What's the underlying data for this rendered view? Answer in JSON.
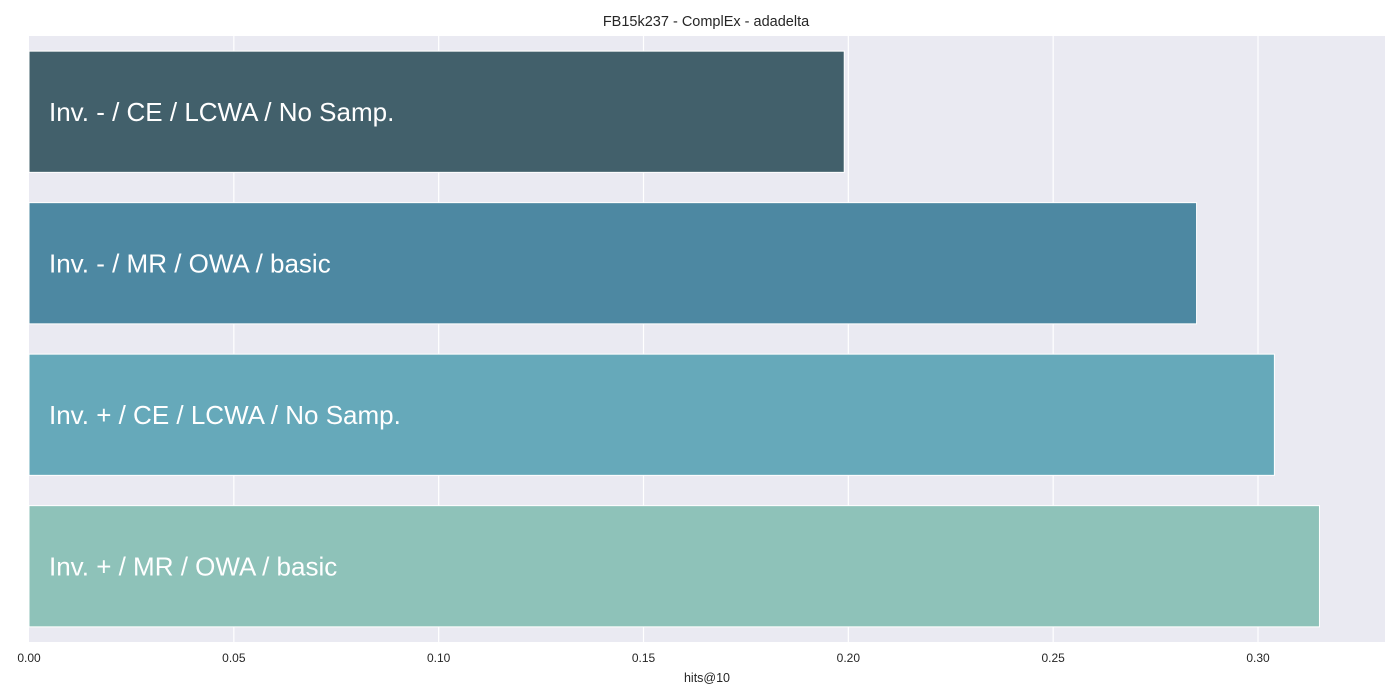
{
  "chart_data": {
    "type": "bar",
    "orientation": "horizontal",
    "title": "FB15k237 - ComplEx - adadelta",
    "xlabel": "hits@10",
    "ylabel": "",
    "xlim": [
      0,
      0.331
    ],
    "xticks": [
      "0.00",
      "0.05",
      "0.10",
      "0.15",
      "0.20",
      "0.25",
      "0.30"
    ],
    "xtick_values": [
      0,
      0.05,
      0.1,
      0.15,
      0.2,
      0.25,
      0.3
    ],
    "grid": true,
    "categories": [
      "Inv. - / CE / LCWA / No Samp.",
      "Inv. - / MR / OWA / basic",
      "Inv. + / CE / LCWA / No Samp.",
      "Inv. + / MR / OWA / basic"
    ],
    "values": [
      0.199,
      0.285,
      0.304,
      0.315
    ],
    "colors": [
      "#42606b",
      "#4d88a2",
      "#66a9ba",
      "#8ec2b9"
    ],
    "background_color": "#eaeaf2"
  }
}
